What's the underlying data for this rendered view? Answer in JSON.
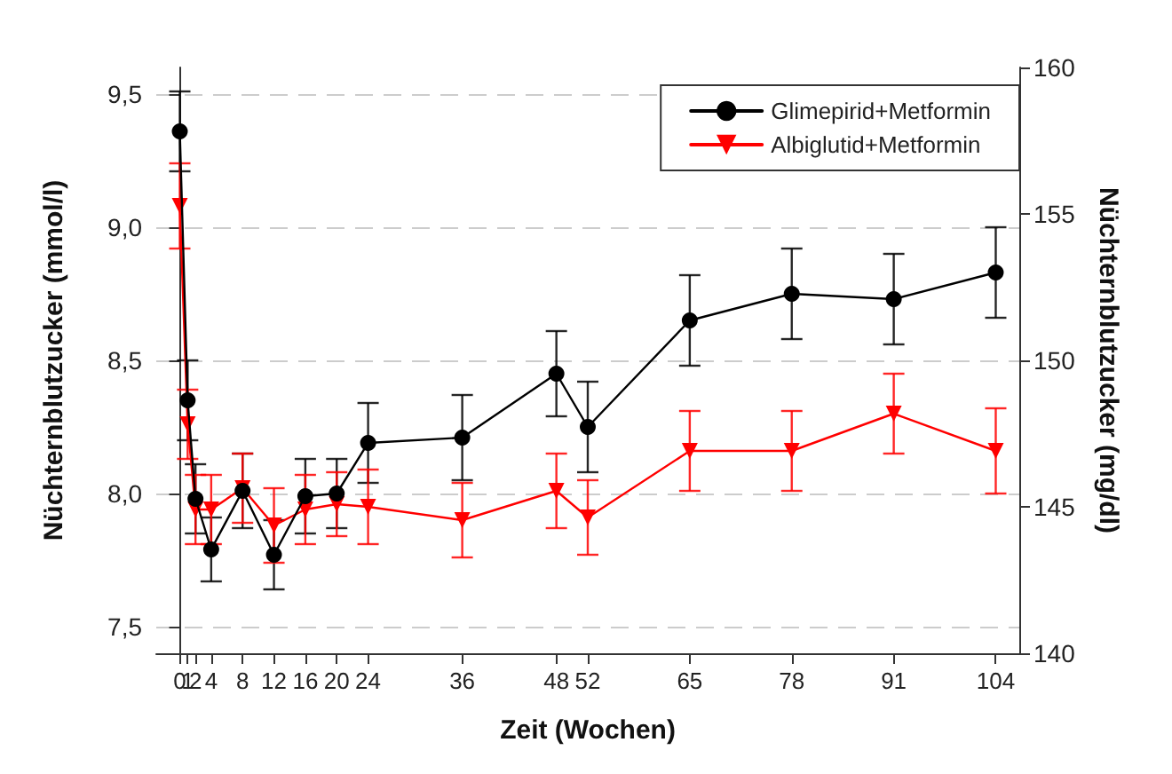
{
  "chart_data": {
    "type": "line",
    "xlabel": "Zeit (Wochen)",
    "ylabel": "Nüchternblutzucker (mmol/l)",
    "y2label": "Nüchternblutzucker (mg/dl)",
    "x": [
      0,
      1,
      2,
      4,
      8,
      12,
      16,
      20,
      24,
      36,
      48,
      52,
      65,
      78,
      91,
      104
    ],
    "series": [
      {
        "name": "Glimepirid+Metformin",
        "color": "#000000",
        "marker": "circle",
        "values": [
          9.36,
          8.35,
          7.98,
          7.79,
          8.01,
          7.77,
          7.99,
          8.0,
          8.19,
          8.21,
          8.45,
          8.25,
          8.65,
          8.75,
          8.73,
          8.83
        ],
        "errors": [
          0.15,
          0.15,
          0.13,
          0.12,
          0.14,
          0.13,
          0.14,
          0.13,
          0.15,
          0.16,
          0.16,
          0.17,
          0.17,
          0.17,
          0.17,
          0.17
        ]
      },
      {
        "name": "Albiglutid+Metformin",
        "color": "#ff0000",
        "marker": "triangle",
        "values": [
          9.08,
          8.26,
          7.94,
          7.94,
          8.02,
          7.88,
          7.94,
          7.96,
          7.95,
          7.9,
          8.01,
          7.91,
          8.16,
          8.16,
          8.3,
          8.16
        ],
        "errors": [
          0.16,
          0.13,
          0.13,
          0.13,
          0.13,
          0.14,
          0.13,
          0.12,
          0.14,
          0.14,
          0.14,
          0.14,
          0.15,
          0.15,
          0.15,
          0.16
        ]
      }
    ],
    "xlim": [
      -3,
      107
    ],
    "xticks": [
      0,
      1,
      2,
      4,
      8,
      12,
      16,
      20,
      24,
      36,
      48,
      52,
      65,
      78,
      91,
      104
    ],
    "ylim": [
      7.4,
      9.6
    ],
    "yticks": [
      {
        "value": 7.5,
        "label": "7,5"
      },
      {
        "value": 8.0,
        "label": "8,0"
      },
      {
        "value": 8.5,
        "label": "8,5"
      },
      {
        "value": 9.0,
        "label": "9,0"
      },
      {
        "value": 9.5,
        "label": "9,5"
      }
    ],
    "y2lim": [
      140,
      160
    ],
    "y2ticks": [
      140,
      145,
      150,
      155,
      160
    ],
    "grid": "y",
    "legend": "top right",
    "line_style": "solid"
  }
}
